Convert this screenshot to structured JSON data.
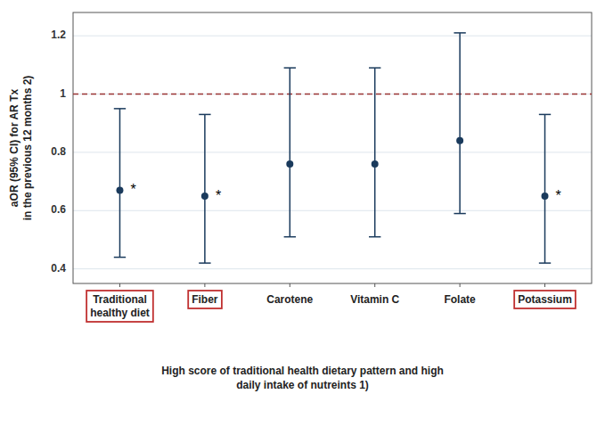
{
  "chart_data": {
    "type": "errorbar",
    "categories": [
      "Traditional\nhealthy diet",
      "Fiber",
      "Carotene",
      "Vitamin C",
      "Folate",
      "Potassium"
    ],
    "values": [
      0.67,
      0.65,
      0.76,
      0.76,
      0.84,
      0.65
    ],
    "ci_lower": [
      0.44,
      0.42,
      0.51,
      0.51,
      0.59,
      0.42
    ],
    "ci_upper": [
      0.95,
      0.93,
      1.09,
      1.09,
      1.21,
      0.93
    ],
    "color": "#1a3a5c",
    "ref_line": {
      "value": 1,
      "color": "#993333"
    },
    "annotations": [
      {
        "text": "*",
        "category": "Traditional\nhealthy diet"
      },
      {
        "text": "*",
        "category": "Fiber"
      },
      {
        "text": "*",
        "category": "Potassium"
      }
    ],
    "highlight": {
      "categories": [
        "Traditional\nhealthy diet",
        "Fiber",
        "Potassium"
      ],
      "color": "#c03030"
    },
    "ylim": [
      0.35,
      1.28
    ],
    "yticks": [
      0.4,
      0.6,
      0.8,
      1,
      1.2
    ],
    "grid": true,
    "ylabel": "aOR (95% CI) for AR Tx\nin the previous 12 months 2)",
    "xlabel": "High score of traditional health dietary pattern and high\ndaily intake of nutreints 1)"
  }
}
